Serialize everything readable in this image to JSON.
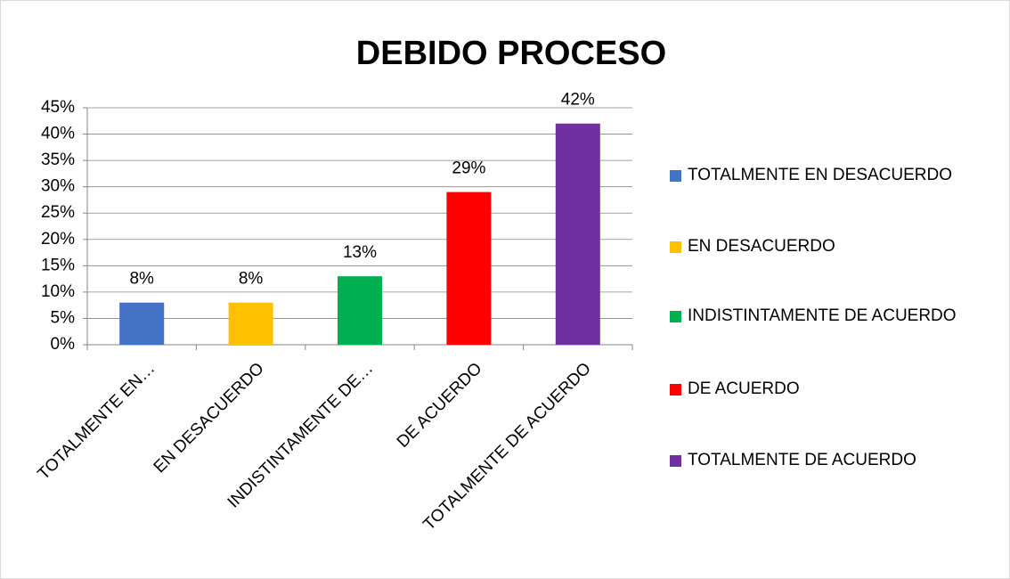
{
  "chart_data": {
    "type": "bar",
    "title": "DEBIDO PROCESO",
    "categories": [
      "TOTALMENTE EN…",
      "EN DESACUERDO",
      "INDISTINTAMENTE DE…",
      "DE ACUERDO",
      "TOTALMENTE DE ACUERDO"
    ],
    "legend_labels": [
      "TOTALMENTE EN DESACUERDO",
      "EN DESACUERDO",
      "INDISTINTAMENTE DE ACUERDO",
      "DE ACUERDO",
      "TOTALMENTE DE ACUERDO"
    ],
    "values": [
      8,
      8,
      13,
      29,
      42
    ],
    "value_labels": [
      "8%",
      "8%",
      "13%",
      "29%",
      "42%"
    ],
    "colors": [
      "#4472c4",
      "#ffc000",
      "#00b050",
      "#ff0000",
      "#7030a0"
    ],
    "ylim": [
      0,
      45
    ],
    "yticks": [
      {
        "value": 0,
        "label": "0%"
      },
      {
        "value": 5,
        "label": "5%"
      },
      {
        "value": 10,
        "label": "10%"
      },
      {
        "value": 15,
        "label": "15%"
      },
      {
        "value": 20,
        "label": "20%"
      },
      {
        "value": 25,
        "label": "25%"
      },
      {
        "value": 30,
        "label": "30%"
      },
      {
        "value": 35,
        "label": "35%"
      },
      {
        "value": 40,
        "label": "40%"
      },
      {
        "value": 45,
        "label": "45%"
      }
    ],
    "grid": true,
    "legend": "right"
  }
}
